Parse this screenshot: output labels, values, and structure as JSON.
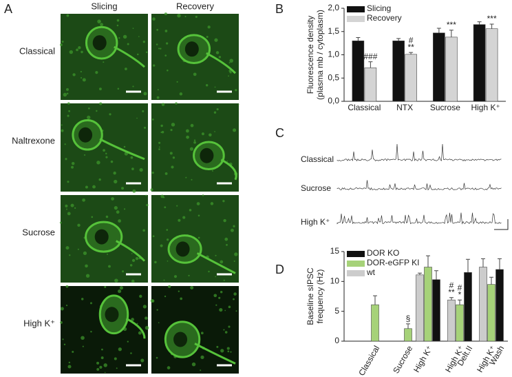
{
  "panel_labels": [
    "A",
    "B",
    "C",
    "D"
  ],
  "panel_a": {
    "columns": [
      "Slicing",
      "Recovery"
    ],
    "rows": [
      "Classical",
      "Naltrexone",
      "Sucrose",
      "High K⁺"
    ]
  },
  "panel_c": {
    "traces": [
      "Classical",
      "Sucrose",
      "High K⁺"
    ]
  },
  "chart_data": [
    {
      "type": "bar",
      "ylabel": [
        "Fluorescence density",
        "(plasma mb / cytoplasm)"
      ],
      "categories": [
        "Classical",
        "NTX",
        "Sucrose",
        "High K⁺"
      ],
      "ylim": [
        0,
        2
      ],
      "yticks": [
        {
          "value": 0,
          "label": "0,0"
        },
        {
          "value": 0.5,
          "label": "0,5"
        },
        {
          "value": 1,
          "label": "1,0"
        },
        {
          "value": 1.5,
          "label": "1,5"
        },
        {
          "value": 2,
          "label": "2,0"
        }
      ],
      "legend": "upper left",
      "series": [
        {
          "name": "Slicing",
          "color": "#111111",
          "values": [
            1.3,
            1.3,
            1.47,
            1.65
          ],
          "errors": [
            0.07,
            0.05,
            0.1,
            0.06
          ],
          "significance": [
            null,
            null,
            null,
            null
          ]
        },
        {
          "name": "Recovery",
          "color": "#d4d4d4",
          "values": [
            0.72,
            1.01,
            1.38,
            1.56
          ],
          "errors": [
            0.13,
            0.04,
            0.15,
            0.1
          ],
          "significance": [
            [
              "###"
            ],
            [
              "#",
              "**"
            ],
            [
              "***"
            ],
            [
              "***"
            ]
          ]
        }
      ]
    },
    {
      "type": "bar",
      "ylabel": [
        "Baseline sIPSC",
        "frequency (Hz)"
      ],
      "categories": [
        [
          "Classical"
        ],
        [
          "Sucrose"
        ],
        [
          "High K⁺"
        ],
        [
          "High K⁺",
          "Delt.II"
        ],
        [
          "High K⁺",
          "Wash"
        ]
      ],
      "ylim": [
        0,
        15
      ],
      "yticks": [
        0,
        5,
        10,
        15
      ],
      "legend": "upper left",
      "series": [
        {
          "name": "DOR KO",
          "color": "#111111",
          "values": [
            null,
            null,
            10.3,
            11.5,
            12
          ],
          "errors": [
            null,
            null,
            1.5,
            2.2,
            1.8
          ],
          "significance": [
            null,
            null,
            null,
            null,
            null
          ]
        },
        {
          "name": "DOR-eGFP KI",
          "color": "#a6d279",
          "values": [
            6.1,
            2.1,
            12.4,
            6.1,
            9.5
          ],
          "errors": [
            1.5,
            0.8,
            1.9,
            0.8,
            1.2
          ],
          "significance": [
            null,
            [
              "§"
            ],
            null,
            [
              "#",
              "*"
            ],
            null
          ]
        },
        {
          "name": "wt",
          "color": "#cccccc",
          "values": [
            null,
            null,
            11.1,
            6.9,
            12.4
          ],
          "errors": [
            null,
            null,
            0.3,
            0.4,
            1.4
          ],
          "significance": [
            null,
            null,
            null,
            [
              "#",
              "**"
            ],
            null
          ]
        }
      ]
    }
  ]
}
